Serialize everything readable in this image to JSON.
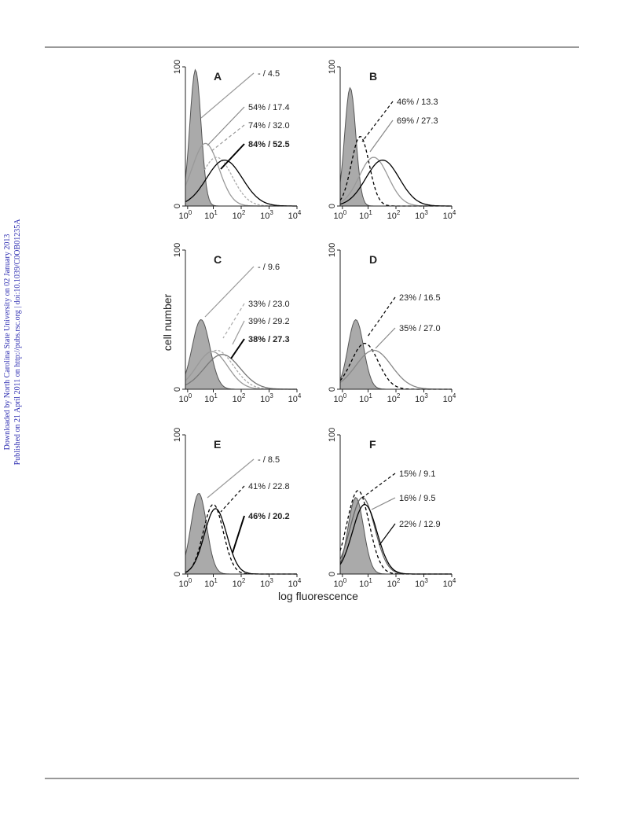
{
  "side_note": [
    "Downloaded by North Carolina State University on 02 January 2013",
    "Published on 21 April 2011 on http://pubs.rsc.org | doi:10.1039/C0OB01235A"
  ],
  "figure": {
    "y_label": "cell number",
    "x_label": "log fluorescence",
    "y_ticks": [
      "0",
      "100"
    ],
    "x_ticks": [
      {
        "base": "10",
        "exp": "0"
      },
      {
        "base": "10",
        "exp": "1"
      },
      {
        "base": "10",
        "exp": "2"
      },
      {
        "base": "10",
        "exp": "3"
      },
      {
        "base": "10",
        "exp": "4"
      }
    ],
    "panels": [
      {
        "letter": "A",
        "annotations": [
          {
            "text": "- / 4.5",
            "bold": false
          },
          {
            "text": "54% / 17.4",
            "bold": false
          },
          {
            "text": "74% / 32.0",
            "bold": false
          },
          {
            "text": "84% / 52.5",
            "bold": true
          }
        ]
      },
      {
        "letter": "B",
        "annotations": [
          {
            "text": "46% / 13.3",
            "bold": false
          },
          {
            "text": "69% / 27.3",
            "bold": false
          }
        ]
      },
      {
        "letter": "C",
        "annotations": [
          {
            "text": "- / 9.6",
            "bold": false
          },
          {
            "text": "33% / 23.0",
            "bold": false
          },
          {
            "text": "39% / 29.2",
            "bold": false
          },
          {
            "text": "38% / 27.3",
            "bold": true
          }
        ]
      },
      {
        "letter": "D",
        "annotations": [
          {
            "text": "23% / 16.5",
            "bold": false
          },
          {
            "text": "35% / 27.0",
            "bold": false
          }
        ]
      },
      {
        "letter": "E",
        "annotations": [
          {
            "text": "- / 8.5",
            "bold": false
          },
          {
            "text": "41% / 22.8",
            "bold": false
          },
          {
            "text": "46% / 20.2",
            "bold": true
          }
        ]
      },
      {
        "letter": "F",
        "annotations": [
          {
            "text": "15% / 9.1",
            "bold": false
          },
          {
            "text": "16% / 9.5",
            "bold": false
          },
          {
            "text": "22% / 12.9",
            "bold": false
          }
        ]
      }
    ]
  }
}
